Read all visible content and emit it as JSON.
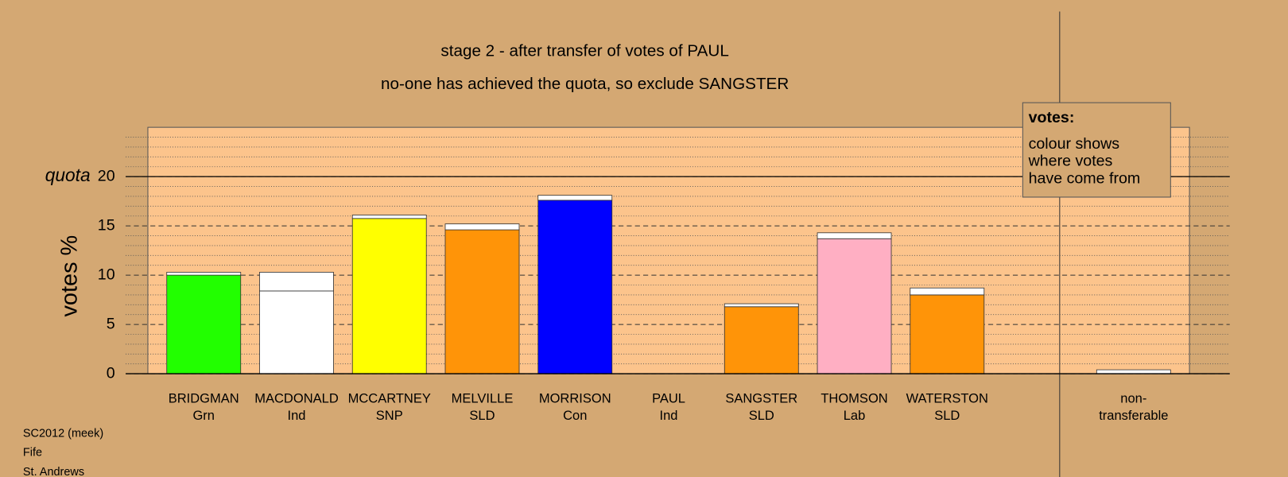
{
  "chart_data": {
    "type": "stacked-bar",
    "title": "stage 2 - after transfer of votes of PAUL",
    "subtitle": "no-one has achieved the quota, so exclude SANGSTER",
    "y_label": "votes %",
    "quota_label": "quota",
    "quota": 20,
    "categories": [
      "BRIDGMAN",
      "MACDONALD",
      "MCCARTNEY",
      "MELVILLE",
      "MORRISON",
      "PAUL",
      "SANGSTER",
      "THOMSON",
      "WATERSTON"
    ],
    "parties": [
      "Grn",
      "Ind",
      "SNP",
      "SLD",
      "Con",
      "Ind",
      "SLD",
      "Lab",
      "SLD"
    ],
    "colors": [
      "#22ff00",
      "#ffffff",
      "#ffff00",
      "#ff9408",
      "#0000ff",
      "#ffffff",
      "#ff9408",
      "#ffafc3",
      "#ff9408"
    ],
    "values": [
      10.0,
      8.4,
      15.75,
      14.6,
      17.6,
      0,
      6.8,
      13.7,
      8.0
    ],
    "transfers": [
      0.3,
      1.9,
      0.35,
      0.6,
      0.5,
      0,
      0.3,
      0.6,
      0.7
    ],
    "transfer_color": "#ffffff",
    "nontransferable": {
      "label": [
        "non-",
        "transferable"
      ],
      "value": 0.4,
      "color": "#ffffff"
    },
    "ylim": [
      0,
      25
    ],
    "yticks": [
      0,
      5,
      10,
      15,
      20
    ],
    "minor_yticks": [
      1,
      2,
      3,
      4,
      6,
      7,
      8,
      9,
      11,
      12,
      13,
      14,
      16,
      17,
      18,
      19,
      21,
      22,
      23,
      24
    ],
    "grid": true,
    "legend": {
      "title": "votes:",
      "lines": [
        "colour shows",
        "where votes",
        "have come from"
      ]
    },
    "footer": [
      "SC2012 (meek)",
      "Fife",
      "St. Andrews"
    ]
  }
}
